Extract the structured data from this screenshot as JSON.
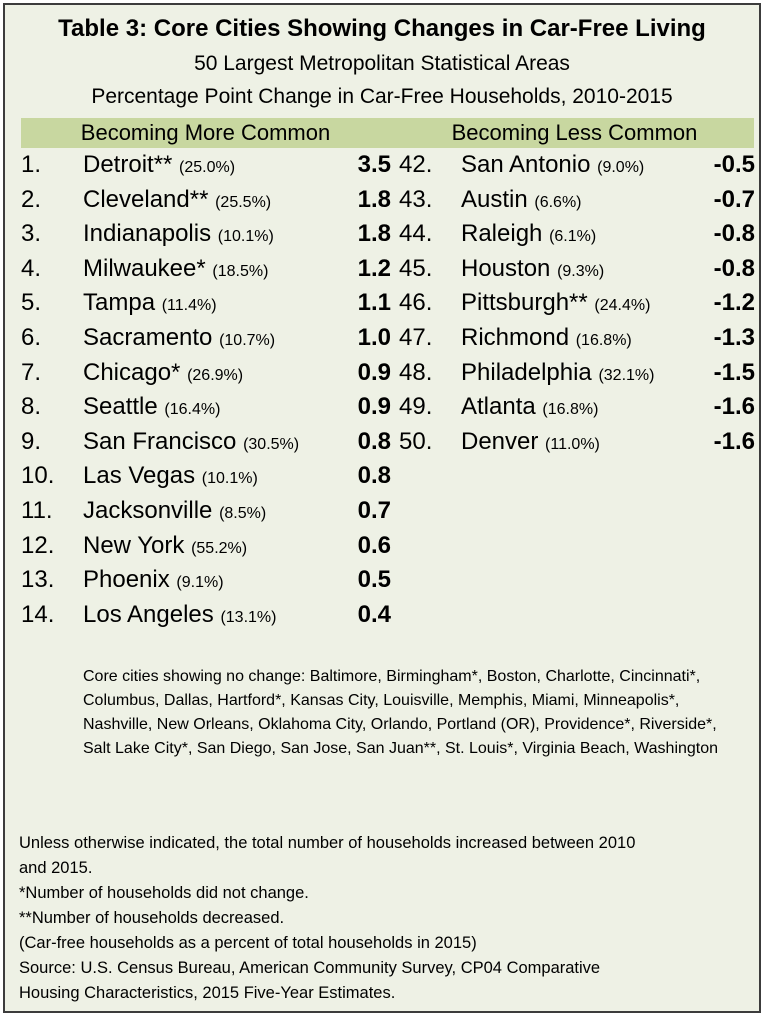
{
  "title": "Table 3: Core Cities Showing Changes in Car-Free Living",
  "subtitle_1": "50 Largest Metropolitan Statistical Areas",
  "subtitle_2": "Percentage Point Change in Car-Free Households, 2010-2015",
  "header_left": "Becoming More Common",
  "header_right": "Becoming Less Common",
  "colors": {
    "background": "#eef1e5",
    "header_band": "#c8d7a0",
    "border": "#3c3c3c"
  },
  "chart_data": {
    "type": "table",
    "more_common": [
      {
        "rank": "1.",
        "city": "Detroit**",
        "pct": "(25.0%)",
        "value": "3.5"
      },
      {
        "rank": "2.",
        "city": "Cleveland**",
        "pct": "(25.5%)",
        "value": "1.8"
      },
      {
        "rank": "3.",
        "city": "Indianapolis",
        "pct": "(10.1%)",
        "value": "1.8"
      },
      {
        "rank": "4.",
        "city": "Milwaukee*",
        "pct": "(18.5%)",
        "value": "1.2"
      },
      {
        "rank": "5.",
        "city": "Tampa",
        "pct": "(11.4%)",
        "value": "1.1"
      },
      {
        "rank": "6.",
        "city": "Sacramento",
        "pct": "(10.7%)",
        "value": "1.0"
      },
      {
        "rank": "7.",
        "city": "Chicago*",
        "pct": "(26.9%)",
        "value": "0.9"
      },
      {
        "rank": "8.",
        "city": "Seattle",
        "pct": "(16.4%)",
        "value": "0.9"
      },
      {
        "rank": "9.",
        "city": "San Francisco",
        "pct": "(30.5%)",
        "value": "0.8"
      },
      {
        "rank": "10.",
        "city": "Las Vegas",
        "pct": "(10.1%)",
        "value": "0.8"
      },
      {
        "rank": "11.",
        "city": "Jacksonville",
        "pct": "(8.5%)",
        "value": "0.7"
      },
      {
        "rank": "12.",
        "city": "New York",
        "pct": "(55.2%)",
        "value": "0.6"
      },
      {
        "rank": "13.",
        "city": "Phoenix",
        "pct": "(9.1%)",
        "value": "0.5"
      },
      {
        "rank": "14.",
        "city": "Los Angeles",
        "pct": "(13.1%)",
        "value": "0.4"
      }
    ],
    "less_common": [
      {
        "rank": "42.",
        "city": "San Antonio",
        "pct": "(9.0%)",
        "value": "-0.5"
      },
      {
        "rank": "43.",
        "city": "Austin",
        "pct": "(6.6%)",
        "value": "-0.7"
      },
      {
        "rank": "44.",
        "city": "Raleigh",
        "pct": "(6.1%)",
        "value": "-0.8"
      },
      {
        "rank": "45.",
        "city": "Houston",
        "pct": "(9.3%)",
        "value": "-0.8"
      },
      {
        "rank": "46.",
        "city": "Pittsburgh**",
        "pct": "(24.4%)",
        "value": "-1.2"
      },
      {
        "rank": "47.",
        "city": "Richmond",
        "pct": "(16.8%)",
        "value": "-1.3"
      },
      {
        "rank": "48.",
        "city": "Philadelphia",
        "pct": "(32.1%)",
        "value": "-1.5"
      },
      {
        "rank": "49.",
        "city": "Atlanta",
        "pct": "(16.8%)",
        "value": "-1.6"
      },
      {
        "rank": "50.",
        "city": "Denver",
        "pct": "(11.0%)",
        "value": "-1.6"
      }
    ]
  },
  "no_change_note": "Core cities showing no change: Baltimore, Birmingham*, Boston, Charlotte, Cincinnati*, Columbus, Dallas, Hartford*, Kansas City, Louisville, Memphis, Miami, Minneapolis*, Nashville, New Orleans, Oklahoma City, Orlando, Portland (OR), Providence*, Riverside*, Salt Lake City*, San Diego, San Jose, San Juan**, St. Louis*, Virginia Beach, Washington",
  "footnotes": [
    "Unless otherwise indicated, the total number of households increased between 2010",
    "and 2015.",
    "*Number of households did not change.",
    "**Number of households decreased.",
    "(Car-free households as a percent of total households in 2015)",
    "Source: U.S. Census Bureau, American Community Survey, CP04 Comparative",
    "Housing Characteristics, 2015 Five-Year Estimates."
  ]
}
